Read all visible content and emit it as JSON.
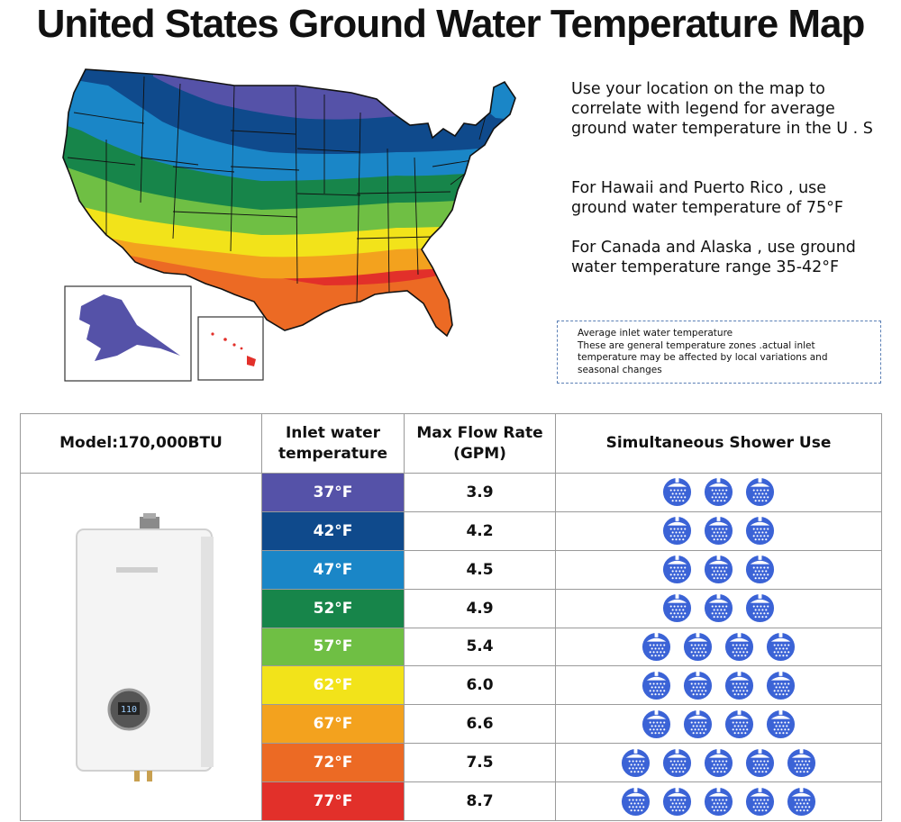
{
  "title": "United States Ground Water Temperature Map",
  "description": {
    "p1": "Use your location on the map to correlate with legend for average ground water temperature in the U . S",
    "p2": "For Hawaii and Puerto Rico , use ground water temperature of 75°F",
    "p3": "For Canada and Alaska , use ground water temperature range 35-42°F"
  },
  "note": {
    "line1": "Average inlet water temperature",
    "line2": "These are general temperature zones .actual inlet temperature may be affected by local variations and seasonal changes"
  },
  "table": {
    "headers": {
      "model": "Model:170,000BTU",
      "inlet": "Inlet water temperature",
      "flow": "Max Flow Rate (GPM)",
      "shower": "Simultaneous Shower Use"
    },
    "rows": [
      {
        "temp": "37°F",
        "flow": "3.9",
        "showers": 3,
        "color": "#5552a8"
      },
      {
        "temp": "42°F",
        "flow": "4.2",
        "showers": 3,
        "color": "#0f4a8c"
      },
      {
        "temp": "47°F",
        "flow": "4.5",
        "showers": 3,
        "color": "#1a86c7"
      },
      {
        "temp": "52°F",
        "flow": "4.9",
        "showers": 3,
        "color": "#17854a"
      },
      {
        "temp": "57°F",
        "flow": "5.4",
        "showers": 4,
        "color": "#6fbf44"
      },
      {
        "temp": "62°F",
        "flow": "6.0",
        "showers": 4,
        "color": "#f2e31a"
      },
      {
        "temp": "67°F",
        "flow": "6.6",
        "showers": 4,
        "color": "#f3a21e"
      },
      {
        "temp": "72°F",
        "flow": "7.5",
        "showers": 5,
        "color": "#ec6a24"
      },
      {
        "temp": "77°F",
        "flow": "8.7",
        "showers": 5,
        "color": "#e2302a"
      }
    ]
  },
  "heater_display": "110",
  "icons": {
    "shower": "shower-head-icon"
  },
  "colors": {
    "shower_icon": "#3b63d6",
    "note_border": "#5a7fb5"
  }
}
